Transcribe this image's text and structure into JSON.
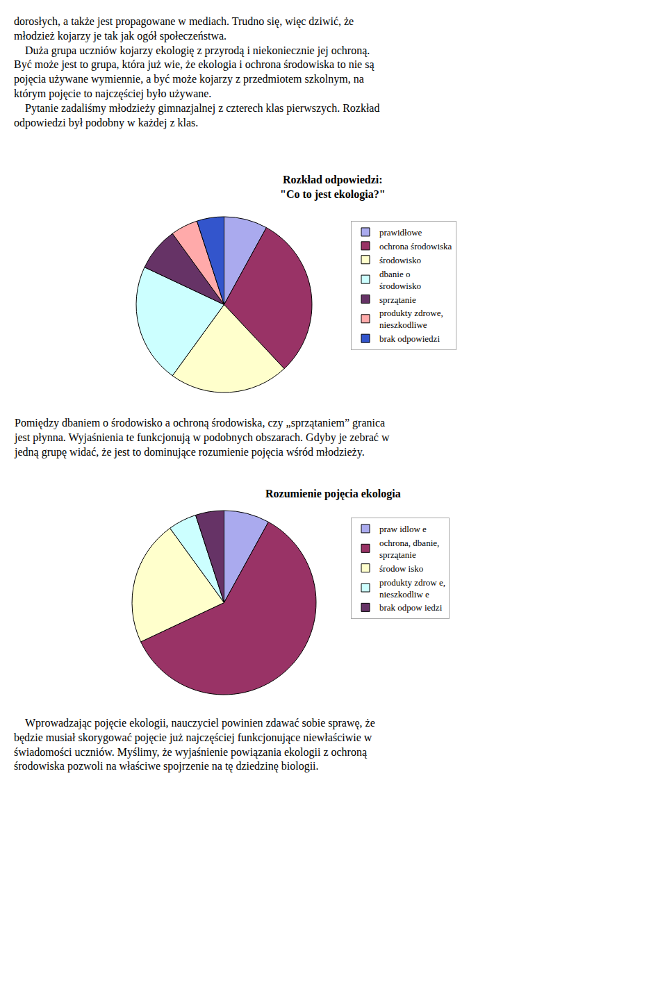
{
  "chart_data": [
    {
      "type": "pie",
      "title": "Rozkład odpowiedzi:",
      "subtitle": "\"Co to jest ekologia?\"",
      "categories": [
        "prawidłowe",
        "ochrona środowiska",
        "środowisko",
        "dbanie o\nśrodowisko",
        "sprzątanie",
        "produkty zdrowe,\nnieszkodliwe",
        "brak odpowiedzi"
      ],
      "values": [
        8,
        30,
        22,
        22,
        8,
        5,
        5
      ],
      "colors": [
        "#aaaaee",
        "#993366",
        "#ffffcc",
        "#ccffff",
        "#663366",
        "#ffaaaa",
        "#3355cc"
      ],
      "legend": "right",
      "annotations": [
        "dorosłych, a także jest propagowane w mediach. Trudno się, więc dziwić, że\nmłodzież kojarzy je tak jak ogół społeczeństwa.\n    Duża grupa uczniów kojarzy ekologię z przyrodą i niekoniecznie jej ochroną.\nByć może jest to grupa, która już wie, że ekologia i ochrona środowiska to nie są\npojęcia używane wymiennie, a być może kojarzy z przedmiotem szkolnym, na\nktórym pojęcie to najczęściej było używane.\n    Pytanie zadaliśmy młodzieży gimnazjalnej z czterech klas pierwszych. Rozkład\nodpowiedzi był podobny w każdej z klas."
      ]
    },
    {
      "type": "pie",
      "title": "Rozumienie pojęcia ekologia",
      "categories": [
        "praw idlow e",
        "ochrona, dbanie,\nsprzątanie",
        "środow isko",
        "produkty zdrow e,\nnieszkodliw e",
        "brak odpow iedzi"
      ],
      "values": [
        8,
        60,
        22,
        5,
        5
      ],
      "colors": [
        "#aaaaee",
        "#993366",
        "#ffffcc",
        "#ccffff",
        "#663366"
      ],
      "legend": "right",
      "annotations": [
        "Pomiędzy dbaniem o środowisko a ochroną środowiska, czy „sprzątaniem” granica\njest płynna. Wyjaśnienia te funkcjonują w podobnych obszarach. Gdyby je zebrać w\njedną grupę widać, że jest to dominujące rozumienie pojęcia wśród młodzieży.",
        "    Wprowadzając pojęcie ekologii, nauczyciel powinien zdawać sobie sprawę, że\nbędzie musiał skorygować pojęcie już najczęściej funkcjonujące niewłaściwie w\nświadomości uczniów. Myślimy, że wyjaśnienie powiązania ekologii z ochroną\nśrodowiska pozwoli na właściwe spojrzenie na tę dziedzinę biologii."
      ]
    }
  ]
}
